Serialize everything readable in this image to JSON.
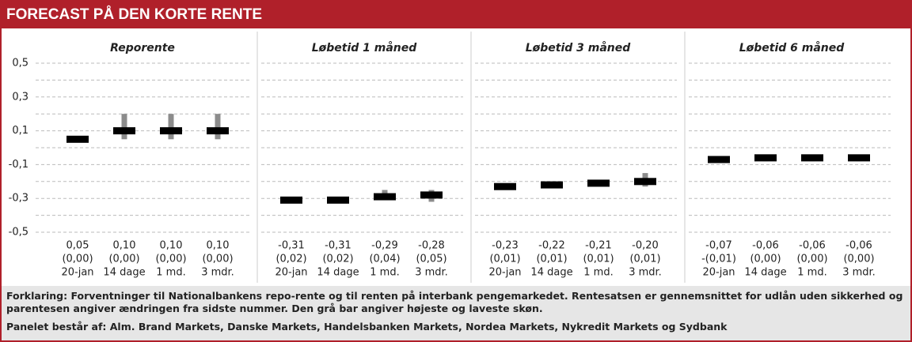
{
  "header": {
    "title": "FORECAST PÅ DEN KORTE RENTE"
  },
  "chart_data": [
    {
      "type": "range",
      "title": "Reporente",
      "categories": [
        "20-jan",
        "14 dage",
        "1 md.",
        "3 mdr."
      ],
      "values": [
        0.05,
        0.1,
        0.1,
        0.1
      ],
      "value_labels": [
        "0,05",
        "0,10",
        "0,10",
        "0,10"
      ],
      "change_labels": [
        "(0,00)",
        "(0,00)",
        "(0,00)",
        "(0,00)"
      ],
      "low": [
        null,
        0.05,
        0.05,
        0.05
      ],
      "high": [
        null,
        0.2,
        0.2,
        0.2
      ],
      "ylim": [
        -0.5,
        0.5
      ],
      "yticks": [
        {
          "value": 0.5,
          "label": "0,5"
        },
        {
          "value": 0.3,
          "label": "0,3"
        },
        {
          "value": 0.1,
          "label": "0,1"
        },
        {
          "value": -0.1,
          "label": "-0,1"
        },
        {
          "value": -0.3,
          "label": "-0,3"
        },
        {
          "value": -0.5,
          "label": "-0,5"
        }
      ],
      "minor_yticks": [
        0.4,
        0.2,
        0,
        -0.2,
        -0.4
      ],
      "grid": true,
      "color": "#000000",
      "range_color": "#8c8c8c"
    },
    {
      "type": "range",
      "title": "Løbetid 1 måned",
      "categories": [
        "20-jan",
        "14 dage",
        "1 md.",
        "3 mdr."
      ],
      "values": [
        -0.31,
        -0.31,
        -0.29,
        -0.28
      ],
      "value_labels": [
        "-0,31",
        "-0,31",
        "-0,29",
        "-0,28"
      ],
      "change_labels": [
        "(0,02)",
        "(0,02)",
        "(0,04)",
        "(0,05)"
      ],
      "low": [
        null,
        null,
        -0.31,
        -0.32
      ],
      "high": [
        null,
        null,
        -0.25,
        -0.25
      ],
      "ylim": [
        -0.5,
        0.5
      ],
      "minor_yticks": [
        0.5,
        0.4,
        0.3,
        0.2,
        0.1,
        0,
        -0.1,
        -0.2,
        -0.3,
        -0.4,
        -0.5
      ],
      "grid": true,
      "color": "#000000",
      "range_color": "#8c8c8c"
    },
    {
      "type": "range",
      "title": "Løbetid 3 måned",
      "categories": [
        "20-jan",
        "14 dage",
        "1 md.",
        "3 mdr."
      ],
      "values": [
        -0.23,
        -0.22,
        -0.21,
        -0.2
      ],
      "value_labels": [
        "-0,23",
        "-0,22",
        "-0,21",
        "-0,20"
      ],
      "change_labels": [
        "(0,01)",
        "(0,01)",
        "(0,01)",
        "(0,01)"
      ],
      "low": [
        null,
        null,
        null,
        -0.23
      ],
      "high": [
        null,
        null,
        null,
        -0.15
      ],
      "ylim": [
        -0.5,
        0.5
      ],
      "minor_yticks": [
        0.5,
        0.4,
        0.3,
        0.2,
        0.1,
        0,
        -0.1,
        -0.2,
        -0.3,
        -0.4,
        -0.5
      ],
      "grid": true,
      "color": "#000000",
      "range_color": "#8c8c8c"
    },
    {
      "type": "range",
      "title": "Løbetid 6 måned",
      "categories": [
        "20-jan",
        "14 dage",
        "1 md.",
        "3 mdr."
      ],
      "values": [
        -0.07,
        -0.06,
        -0.06,
        -0.06
      ],
      "value_labels": [
        "-0,07",
        "-0,06",
        "-0,06",
        "-0,06"
      ],
      "change_labels": [
        "-(0,01)",
        "(0,00)",
        "(0,00)",
        "(0,00)"
      ],
      "low": [
        null,
        -0.08,
        -0.08,
        -0.08
      ],
      "high": [
        null,
        -0.05,
        -0.05,
        -0.05
      ],
      "ylim": [
        -0.5,
        0.5
      ],
      "minor_yticks": [
        0.5,
        0.4,
        0.3,
        0.2,
        0.1,
        0,
        -0.1,
        -0.2,
        -0.3,
        -0.4,
        -0.5
      ],
      "grid": true,
      "color": "#000000",
      "range_color": "#8c8c8c"
    }
  ],
  "notes": [
    "Forklaring: Forventninger til Nationalbankens repo-rente og til renten på interbank pengemarkedet. Rentesatsen er gennemsnittet for udlån uden sikkerhed og parentesen angiver ændringen fra sidste nummer. Den grå bar angiver højeste og laveste skøn.",
    "Panelet består af: Alm. Brand Markets, Danske Markets, Handelsbanken Markets, Nordea Markets, Nykredit Markets og Sydbank"
  ]
}
